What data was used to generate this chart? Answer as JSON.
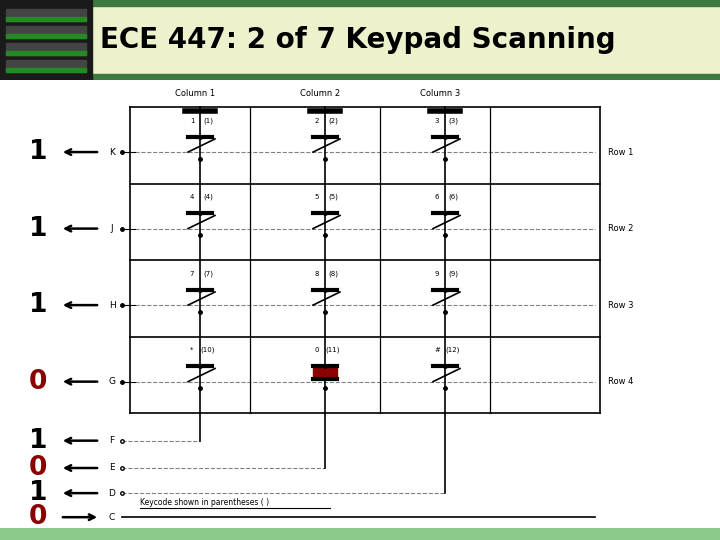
{
  "title": "ECE 447: 2 of 7 Keypad Scanning",
  "title_bg": "#f2f5d8",
  "header_bar_top": "#4a7a4a",
  "header_bar_bottom": "#4a7a4a",
  "bottom_bar_color": "#8bc88b",
  "bits": [
    "1",
    "1",
    "1",
    "0",
    "1",
    "0",
    "1",
    "0"
  ],
  "bit_colors": [
    "black",
    "black",
    "black",
    "#8b0000",
    "black",
    "#8b0000",
    "black",
    "#8b0000"
  ],
  "arrow_dirs": [
    "left",
    "left",
    "left",
    "left",
    "left",
    "left",
    "left",
    "right"
  ],
  "row_wire_labels": [
    "K",
    "J",
    "H",
    "G",
    "F",
    "E",
    "D",
    "C"
  ],
  "col_headers": [
    "Column 1",
    "Column 2",
    "Column 3"
  ],
  "row_group_labels": [
    "Row 1",
    "Row 2",
    "Row 3",
    "Row 4"
  ],
  "switch_labels": [
    [
      "1",
      "(1)",
      "2",
      "(2)",
      "3",
      "(3)"
    ],
    [
      "4",
      "(4)",
      "5",
      "(5)",
      "6",
      "(6)"
    ],
    [
      "7",
      "(7)",
      "8",
      "(8)",
      "9",
      "(9)"
    ],
    [
      "*",
      "(10)",
      "0",
      "(11)",
      "#",
      "(12)"
    ]
  ],
  "closed_switch": [
    3,
    1
  ],
  "keycode_note": "Keycode shown in parentheses ( )"
}
